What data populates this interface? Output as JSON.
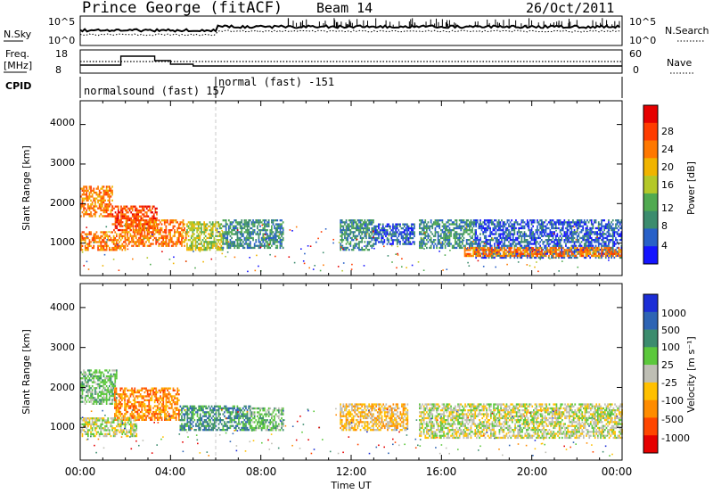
{
  "header": {
    "station": "Prince George (fitACF)",
    "beam": "Beam 14",
    "date": "26/Oct/2011"
  },
  "noise_panel": {
    "left_label": "N.Sky",
    "right_label": "N.Search",
    "left_ticks": [
      "10^5",
      "10^0"
    ],
    "right_ticks": [
      "10^5",
      "10^0"
    ]
  },
  "freq_panel": {
    "left_label_1": "Freq.",
    "left_label_2": "[MHz]",
    "right_label": "Nave",
    "left_ticks": [
      "18",
      "8"
    ],
    "right_ticks": [
      "60",
      "0"
    ]
  },
  "cpid_panel": {
    "label": "CPID",
    "segments": [
      {
        "name": "normalsound (fast) 157",
        "start_hour": 0,
        "end_hour": 6
      },
      {
        "name": "normal (fast) -151",
        "start_hour": 6,
        "end_hour": 24
      }
    ]
  },
  "time_axis": {
    "xlabel": "Time UT",
    "ticks": [
      "00:00",
      "04:00",
      "08:00",
      "12:00",
      "16:00",
      "20:00",
      "00:00"
    ],
    "range_hours": [
      0,
      24
    ]
  },
  "power_panel": {
    "ylabel": "Slant Range [km]",
    "yticks": [
      "1000",
      "2000",
      "3000",
      "4000"
    ],
    "colorbar_label": "Power [dB]",
    "colorbar_ticks": [
      "4",
      "8",
      "12",
      "16",
      "20",
      "24",
      "28"
    ]
  },
  "velocity_panel": {
    "ylabel": "Slant Range [km]",
    "yticks": [
      "1000",
      "2000",
      "3000",
      "4000"
    ],
    "colorbar_label": "Velocity [m s⁻¹]",
    "colorbar_ticks": [
      "1000",
      "500",
      "100",
      "25",
      "-25",
      "-100",
      "-500",
      "-1000"
    ]
  },
  "colors": {
    "power_scale": [
      "#1414ff",
      "#2860c8",
      "#3c8c6e",
      "#50aa50",
      "#b4c828",
      "#f0b400",
      "#ff7800",
      "#ff3c00",
      "#e60000"
    ],
    "velocity_scale": [
      "#1c2ed6",
      "#2e64b4",
      "#3c8c6e",
      "#5cc83c",
      "#bebeb4",
      "#ffc000",
      "#ff8c00",
      "#ff4600",
      "#e60000"
    ]
  },
  "chart_data": {
    "type": "heatmap",
    "x_unit": "hours UT",
    "y_unit": "km",
    "xlim": [
      0,
      24
    ],
    "ylim": [
      180,
      4600
    ],
    "power_blobs": [
      {
        "t0": 0.0,
        "t1": 1.4,
        "r0": 1700,
        "r1": 2450,
        "level": 6
      },
      {
        "t0": 1.4,
        "t1": 3.4,
        "r0": 1350,
        "r1": 1950,
        "level": 7
      },
      {
        "t0": 0.0,
        "t1": 2.0,
        "r0": 850,
        "r1": 1300,
        "level": 6
      },
      {
        "t0": 2.0,
        "t1": 4.7,
        "r0": 950,
        "r1": 1600,
        "level": 6
      },
      {
        "t0": 4.7,
        "t1": 6.3,
        "r0": 850,
        "r1": 1550,
        "level": 4
      },
      {
        "t0": 6.3,
        "t1": 9.0,
        "r0": 900,
        "r1": 1600,
        "level": 2
      },
      {
        "t0": 11.5,
        "t1": 13.0,
        "r0": 850,
        "r1": 1600,
        "level": 2
      },
      {
        "t0": 13.0,
        "t1": 14.8,
        "r0": 1000,
        "r1": 1500,
        "level": 1
      },
      {
        "t0": 15.0,
        "t1": 17.5,
        "r0": 900,
        "r1": 1600,
        "level": 2
      },
      {
        "t0": 17.5,
        "t1": 24.0,
        "r0": 650,
        "r1": 1600,
        "level": 1
      },
      {
        "t0": 17.0,
        "t1": 24.0,
        "r0": 680,
        "r1": 900,
        "level": 6
      }
    ],
    "velocity_blobs": [
      {
        "t0": 0.0,
        "t1": 1.6,
        "r0": 1600,
        "r1": 2450,
        "level": 3
      },
      {
        "t0": 1.5,
        "t1": 4.4,
        "r0": 1200,
        "r1": 2000,
        "level": 6
      },
      {
        "t0": 0.0,
        "t1": 2.5,
        "r0": 800,
        "r1": 1250,
        "level": 4
      },
      {
        "t0": 4.4,
        "t1": 7.5,
        "r0": 950,
        "r1": 1550,
        "level": 2
      },
      {
        "t0": 7.5,
        "t1": 9.0,
        "r0": 950,
        "r1": 1500,
        "level": 3
      },
      {
        "t0": 11.5,
        "t1": 14.5,
        "r0": 950,
        "r1": 1600,
        "level": 5
      },
      {
        "t0": 15.0,
        "t1": 24.0,
        "r0": 750,
        "r1": 1600,
        "level": 4
      }
    ]
  }
}
